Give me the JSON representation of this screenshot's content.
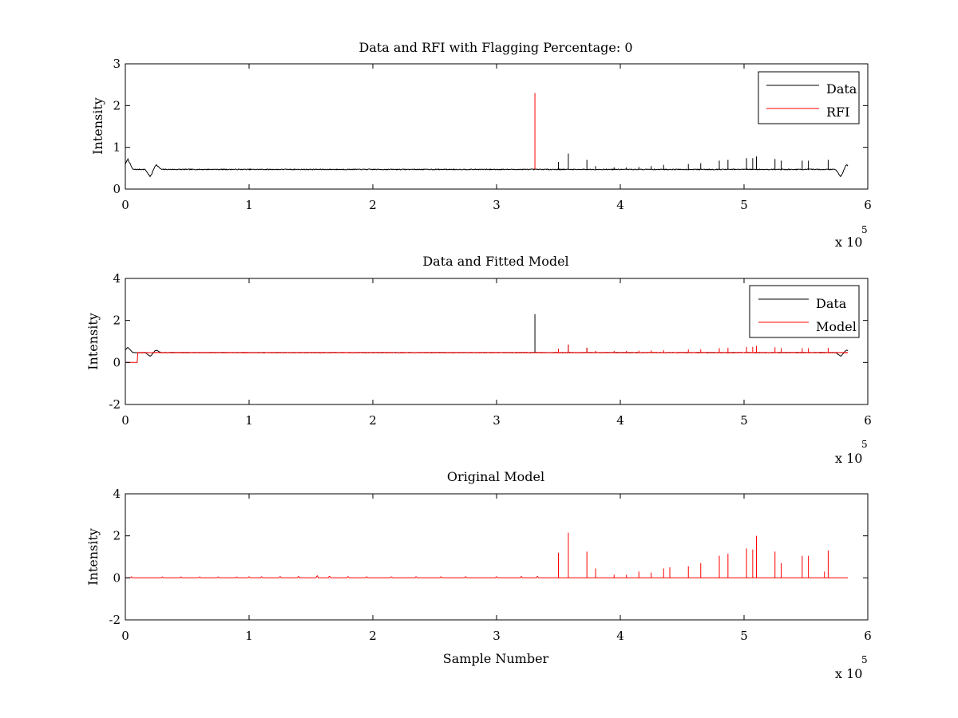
{
  "chart_data": [
    {
      "type": "line",
      "title": "Data and RFI with Flagging Percentage: 0",
      "xlabel": "",
      "ylabel": "Intensity",
      "xlim": [
        0,
        600000
      ],
      "ylim": [
        0,
        3
      ],
      "xticks": [
        0,
        100000,
        200000,
        300000,
        400000,
        500000,
        600000
      ],
      "xtick_labels": [
        "0",
        "1",
        "2",
        "3",
        "4",
        "5",
        "6"
      ],
      "yticks": [
        0,
        1,
        2,
        3
      ],
      "ytick_labels": [
        "0",
        "1",
        "2",
        "3"
      ],
      "x_exponent_label": "x 10",
      "x_exponent": "5",
      "legend": {
        "position": "top-right",
        "entries": [
          "Data",
          "RFI"
        ]
      },
      "grid": false,
      "series": [
        {
          "name": "Data",
          "color": "#000000",
          "x_start": 0,
          "x_end": 584000,
          "baseline": 0.47,
          "noise": 0.01,
          "dips": [
            [
              2000,
              0.72
            ],
            [
              20000,
              0.3
            ],
            [
              25000,
              0.58
            ],
            [
              578000,
              0.3
            ],
            [
              583000,
              0.58
            ]
          ],
          "spikes": [
            [
              350000,
              0.65
            ],
            [
              358000,
              0.85
            ],
            [
              373000,
              0.7
            ],
            [
              380000,
              0.55
            ],
            [
              395000,
              0.52
            ],
            [
              405000,
              0.52
            ],
            [
              415000,
              0.53
            ],
            [
              425000,
              0.55
            ],
            [
              435000,
              0.58
            ],
            [
              455000,
              0.6
            ],
            [
              465000,
              0.62
            ],
            [
              480000,
              0.68
            ],
            [
              487000,
              0.7
            ],
            [
              502000,
              0.74
            ],
            [
              507000,
              0.74
            ],
            [
              510000,
              0.78
            ],
            [
              525000,
              0.72
            ],
            [
              530000,
              0.68
            ],
            [
              547000,
              0.68
            ],
            [
              552000,
              0.68
            ],
            [
              568000,
              0.7
            ]
          ]
        },
        {
          "name": "RFI",
          "color": "#ff0000",
          "spikes": [
            [
              331000,
              2.3
            ]
          ]
        }
      ]
    },
    {
      "type": "line",
      "title": "Data and Fitted Model",
      "xlabel": "",
      "ylabel": "Intensity",
      "xlim": [
        0,
        600000
      ],
      "ylim": [
        -2,
        4
      ],
      "xticks": [
        0,
        100000,
        200000,
        300000,
        400000,
        500000,
        600000
      ],
      "xtick_labels": [
        "0",
        "1",
        "2",
        "3",
        "4",
        "5",
        "6"
      ],
      "yticks": [
        -2,
        0,
        2,
        4
      ],
      "ytick_labels": [
        "-2",
        "0",
        "2",
        "4"
      ],
      "x_exponent_label": "x 10",
      "x_exponent": "5",
      "legend": {
        "position": "top-right",
        "entries": [
          "Data",
          "Model"
        ]
      },
      "grid": false,
      "series": [
        {
          "name": "Data",
          "color": "#000000",
          "x_start": 0,
          "x_end": 584000,
          "baseline": 0.47,
          "noise": 0.01,
          "dips": [
            [
              2000,
              0.72
            ],
            [
              20000,
              0.3
            ],
            [
              25000,
              0.58
            ],
            [
              578000,
              0.3
            ],
            [
              583000,
              0.58
            ]
          ],
          "spikes": [
            [
              331000,
              2.3
            ],
            [
              350000,
              0.65
            ],
            [
              358000,
              0.85
            ],
            [
              373000,
              0.7
            ],
            [
              510000,
              0.78
            ]
          ]
        },
        {
          "name": "Model",
          "color": "#ff0000",
          "x_start": 0,
          "x_end": 584000,
          "baseline": 0.47,
          "pre_zero_until": 10000,
          "noise": 0.015,
          "spikes": [
            [
              350000,
              0.65
            ],
            [
              358000,
              0.85
            ],
            [
              373000,
              0.7
            ],
            [
              380000,
              0.55
            ],
            [
              395000,
              0.55
            ],
            [
              405000,
              0.55
            ],
            [
              415000,
              0.56
            ],
            [
              425000,
              0.57
            ],
            [
              435000,
              0.58
            ],
            [
              455000,
              0.62
            ],
            [
              465000,
              0.62
            ],
            [
              480000,
              0.68
            ],
            [
              487000,
              0.7
            ],
            [
              502000,
              0.74
            ],
            [
              507000,
              0.74
            ],
            [
              510000,
              0.78
            ],
            [
              525000,
              0.72
            ],
            [
              530000,
              0.68
            ],
            [
              547000,
              0.68
            ],
            [
              552000,
              0.68
            ],
            [
              568000,
              0.7
            ]
          ]
        }
      ]
    },
    {
      "type": "line",
      "title": "Original Model",
      "xlabel": "Sample Number",
      "ylabel": "Intensity",
      "xlim": [
        0,
        600000
      ],
      "ylim": [
        -2,
        4
      ],
      "xticks": [
        0,
        100000,
        200000,
        300000,
        400000,
        500000,
        600000
      ],
      "xtick_labels": [
        "0",
        "1",
        "2",
        "3",
        "4",
        "5",
        "6"
      ],
      "yticks": [
        -2,
        0,
        2,
        4
      ],
      "ytick_labels": [
        "-2",
        "0",
        "2",
        "4"
      ],
      "x_exponent_label": "x 10",
      "x_exponent": "5",
      "grid": false,
      "series": [
        {
          "name": "Model",
          "color": "#ff0000",
          "x_start": 0,
          "x_end": 584000,
          "baseline": 0.0,
          "noise": 0.0,
          "spikes": [
            [
              350000,
              1.2
            ],
            [
              358000,
              2.15
            ],
            [
              373000,
              1.25
            ],
            [
              380000,
              0.45
            ],
            [
              395000,
              0.15
            ],
            [
              405000,
              0.15
            ],
            [
              415000,
              0.3
            ],
            [
              425000,
              0.25
            ],
            [
              435000,
              0.45
            ],
            [
              440000,
              0.5
            ],
            [
              455000,
              0.55
            ],
            [
              465000,
              0.7
            ],
            [
              480000,
              1.05
            ],
            [
              487000,
              1.15
            ],
            [
              502000,
              1.4
            ],
            [
              507000,
              1.35
            ],
            [
              510000,
              2.0
            ],
            [
              525000,
              1.25
            ],
            [
              530000,
              0.7
            ],
            [
              547000,
              1.05
            ],
            [
              552000,
              1.05
            ],
            [
              565000,
              0.3
            ],
            [
              568000,
              1.3
            ]
          ],
          "small_bumps": [
            [
              5000,
              0.05
            ],
            [
              30000,
              0.05
            ],
            [
              45000,
              0.05
            ],
            [
              60000,
              0.05
            ],
            [
              75000,
              0.05
            ],
            [
              90000,
              0.05
            ],
            [
              100000,
              0.06
            ],
            [
              110000,
              0.06
            ],
            [
              125000,
              0.07
            ],
            [
              140000,
              0.08
            ],
            [
              155000,
              0.12
            ],
            [
              165000,
              0.1
            ],
            [
              180000,
              0.07
            ],
            [
              195000,
              0.06
            ],
            [
              215000,
              0.06
            ],
            [
              235000,
              0.06
            ],
            [
              255000,
              0.06
            ],
            [
              275000,
              0.06
            ],
            [
              300000,
              0.06
            ],
            [
              320000,
              0.07
            ],
            [
              333000,
              0.08
            ]
          ]
        }
      ]
    }
  ]
}
